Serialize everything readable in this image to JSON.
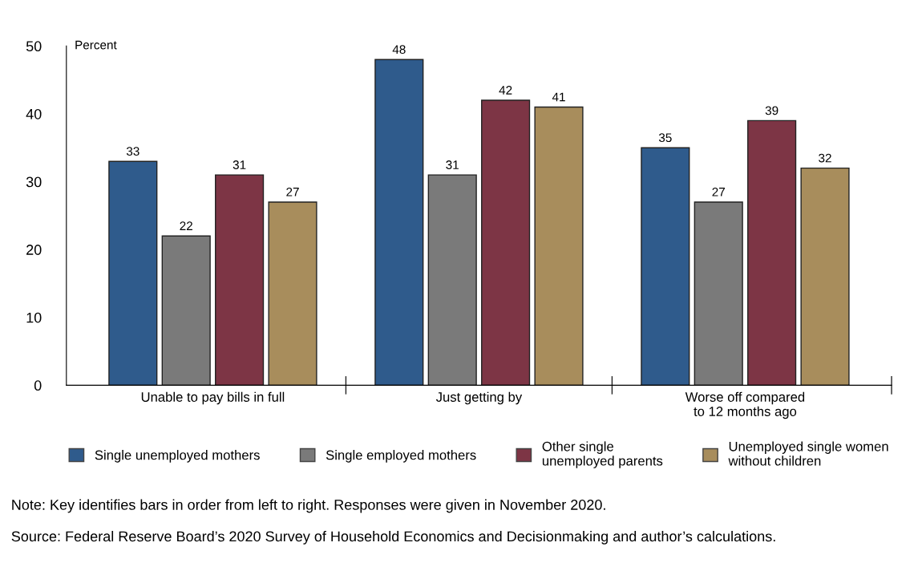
{
  "chart_data": {
    "type": "bar",
    "ylabel": "Percent",
    "categories": [
      "Unable to pay bills in full",
      "Just getting by",
      "Worse off compared\nto 12 months ago"
    ],
    "series": [
      {
        "name": "Single unemployed mothers",
        "color": "#2f5b8c",
        "values": [
          33,
          48,
          35
        ]
      },
      {
        "name": "Single employed mothers",
        "color": "#7a7a7a",
        "values": [
          22,
          31,
          27
        ]
      },
      {
        "name": "Other single\nunemployed parents",
        "color": "#7d3545",
        "values": [
          31,
          42,
          39
        ]
      },
      {
        "name": "Unemployed single women\nwithout children",
        "color": "#a88d5c",
        "values": [
          27,
          41,
          32
        ]
      }
    ],
    "ylim": [
      0,
      50
    ],
    "yticks": [
      0,
      10,
      20,
      30,
      40,
      50
    ],
    "data_labels": true,
    "grid": false,
    "legend": "bottom",
    "annotations": [
      "Note: Key identifies bars in order from left to right. Responses were given in November 2020.",
      "Source: Federal Reserve Board’s 2020 Survey of Household Economics and Decisionmaking and author’s calculations."
    ]
  }
}
